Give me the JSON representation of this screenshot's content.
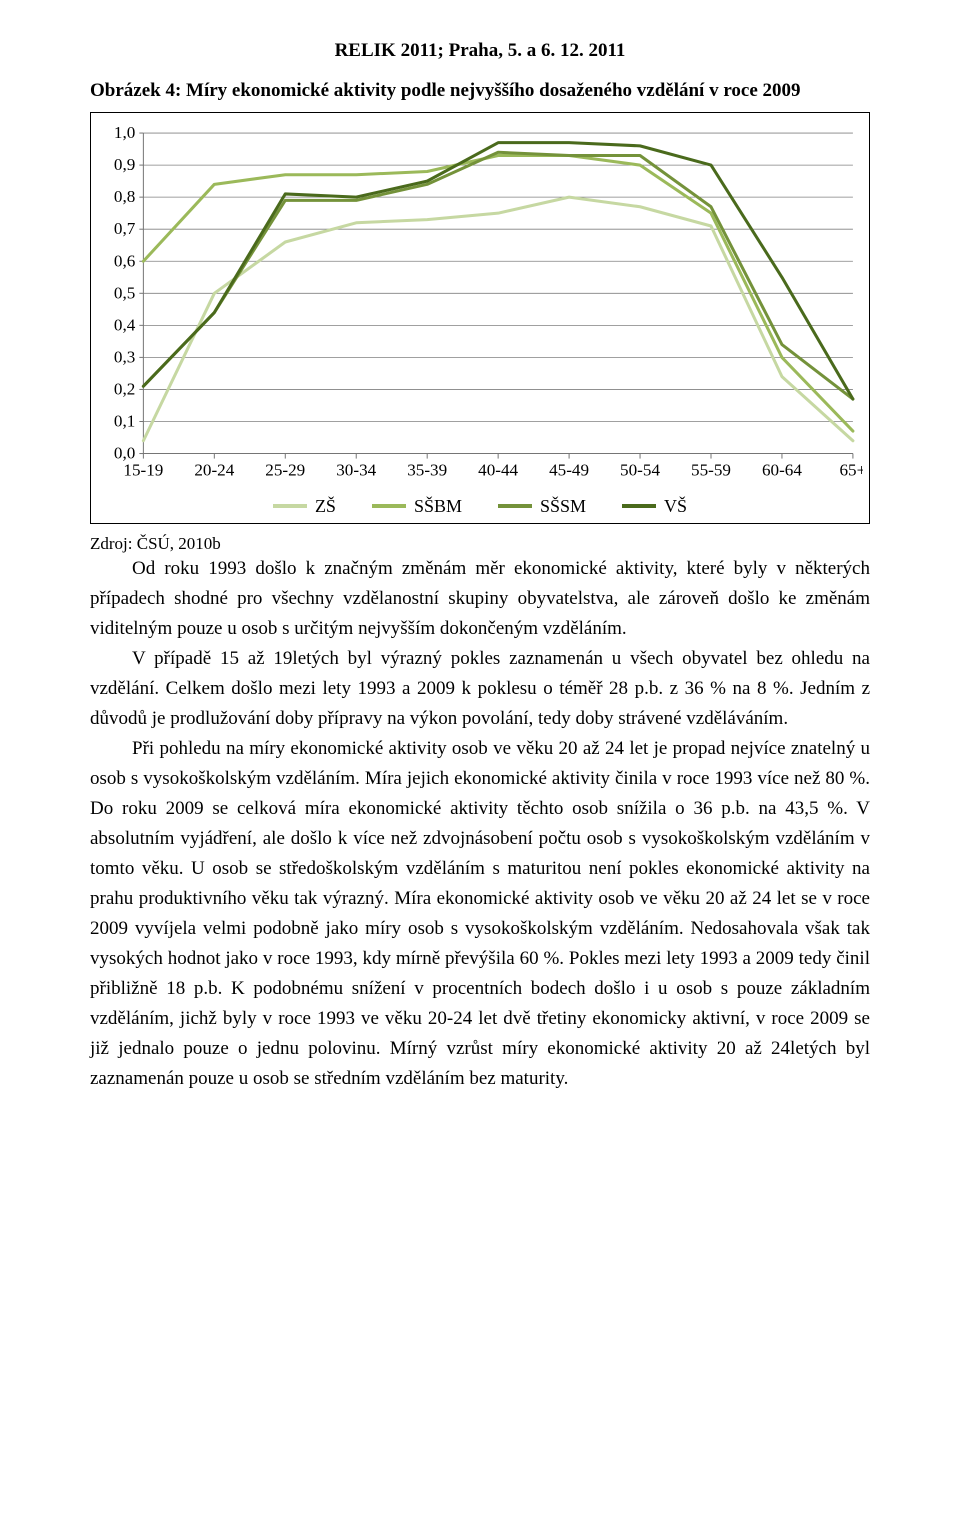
{
  "header": {
    "text": "RELIK 2011; Praha, 5. a 6. 12. 2011"
  },
  "figure": {
    "caption": "Obrázek 4: Míry ekonomické aktivity podle nejvyššího dosaženého vzdělání v roce 2009",
    "source": "Zdroj: ČSÚ, 2010b",
    "chart": {
      "type": "line",
      "categories": [
        "15-19",
        "20-24",
        "25-29",
        "30-34",
        "35-39",
        "40-44",
        "45-49",
        "50-54",
        "55-59",
        "60-64",
        "65+"
      ],
      "ylim": [
        0.0,
        1.0
      ],
      "yticks": [
        "0,0",
        "0,1",
        "0,2",
        "0,3",
        "0,4",
        "0,5",
        "0,6",
        "0,7",
        "0,8",
        "0,9",
        "1,0"
      ],
      "label_fontsize": 17,
      "background_color": "#ffffff",
      "grid_color": "#808080",
      "axis_color": "#757575",
      "line_width": 3,
      "series": [
        {
          "name": "ZŠ",
          "color": "#c6d8a2",
          "values": [
            0.04,
            0.5,
            0.66,
            0.72,
            0.73,
            0.75,
            0.8,
            0.77,
            0.71,
            0.24,
            0.04
          ]
        },
        {
          "name": "SŠBM",
          "color": "#9bb95a",
          "values": [
            0.6,
            0.84,
            0.87,
            0.87,
            0.88,
            0.93,
            0.93,
            0.9,
            0.75,
            0.3,
            0.07
          ]
        },
        {
          "name": "SŠSM",
          "color": "#74923a",
          "values": [
            0.21,
            0.44,
            0.79,
            0.79,
            0.84,
            0.94,
            0.93,
            0.93,
            0.77,
            0.34,
            0.17
          ]
        },
        {
          "name": "VŠ",
          "color": "#4a6a1c",
          "values": [
            0.21,
            0.44,
            0.81,
            0.8,
            0.85,
            0.97,
            0.97,
            0.96,
            0.9,
            0.55,
            0.17
          ]
        }
      ]
    }
  },
  "body": {
    "paragraphs": [
      "Od roku 1993 došlo k značným změnám měr ekonomické aktivity, které byly v některých případech shodné pro všechny vzdělanostní skupiny obyvatelstva, ale zároveň došlo ke změnám viditelným pouze u osob s určitým nejvyšším dokončeným vzděláním.",
      "V případě 15 až 19letých byl výrazný pokles zaznamenán u všech obyvatel bez ohledu na vzdělání. Celkem došlo mezi lety 1993 a 2009 k poklesu o téměř 28 p.b. z 36 % na 8 %. Jedním z důvodů je prodlužování doby přípravy na výkon povolání, tedy doby strávené vzděláváním.",
      "Při pohledu na míry ekonomické aktivity osob ve věku 20 až 24 let je propad nejvíce znatelný u osob s vysokoškolským vzděláním. Míra jejich ekonomické aktivity činila v roce 1993 více než 80 %. Do roku 2009 se celková míra ekonomické aktivity těchto osob snížila o 36 p.b. na 43,5 %. V absolutním vyjádření, ale došlo k více než zdvojnásobení počtu osob s vysokoškolským vzděláním v tomto věku. U osob se středoškolským vzděláním s maturitou není pokles ekonomické aktivity na prahu produktivního věku tak výrazný. Míra ekonomické aktivity osob ve věku 20 až 24 let se v roce 2009 vyvíjela velmi podobně jako míry osob s vysokoškolským vzděláním. Nedosahovala však tak vysokých hodnot jako v roce 1993, kdy mírně převýšila 60 %. Pokles mezi lety 1993 a 2009 tedy činil přibližně 18 p.b. K podobnému snížení v procentních bodech došlo i u osob s pouze základním vzděláním, jichž byly v roce 1993 ve věku 20-24 let dvě třetiny ekonomicky aktivní, v roce 2009 se již jednalo pouze o jednu polovinu. Mírný vzrůst míry ekonomické aktivity 20 až 24letých byl zaznamenán pouze u osob se středním vzděláním bez maturity."
    ]
  }
}
